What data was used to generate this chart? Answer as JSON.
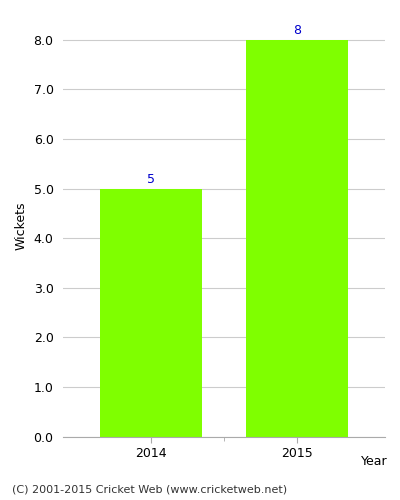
{
  "categories": [
    "2014",
    "2015"
  ],
  "values": [
    5,
    8
  ],
  "bar_color": "#7fff00",
  "bar_edgecolor": "#7fff00",
  "year_label": "Year",
  "ylabel": "Wickets",
  "ylim": [
    0,
    8.5
  ],
  "yticks": [
    0.0,
    1.0,
    2.0,
    3.0,
    4.0,
    5.0,
    6.0,
    7.0,
    8.0
  ],
  "label_color": "#0000cc",
  "label_fontsize": 9,
  "tick_fontsize": 9,
  "ylabel_fontsize": 9,
  "footer_text": "(C) 2001-2015 Cricket Web (www.cricketweb.net)",
  "footer_fontsize": 8,
  "background_color": "#ffffff",
  "grid_color": "#cccccc",
  "bar_width": 0.7
}
